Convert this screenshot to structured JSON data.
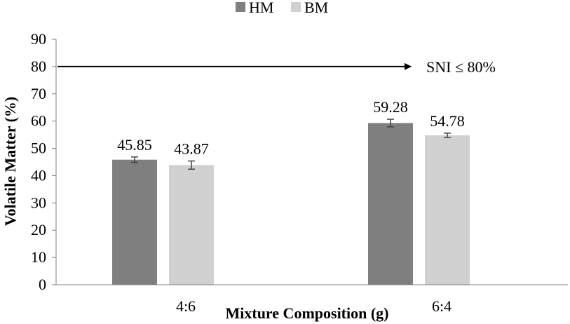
{
  "chart_data": {
    "type": "bar",
    "categories": [
      "4:6",
      "6:4"
    ],
    "series": [
      {
        "name": "HM",
        "color": "#7f7f7f",
        "values": [
          45.85,
          59.28
        ],
        "errors": [
          1.0,
          1.4
        ],
        "labels": [
          "45.85",
          "59.28"
        ]
      },
      {
        "name": "BM",
        "color": "#d0d0d0",
        "values": [
          43.87,
          54.78
        ],
        "errors": [
          1.5,
          0.8
        ],
        "labels": [
          "43.87",
          "54.78"
        ]
      }
    ],
    "xlabel": "Mixture Composition (g)",
    "ylabel": "Volatile Matter (%)",
    "ylim": [
      0,
      90
    ],
    "yticks": [
      0,
      10,
      20,
      30,
      40,
      50,
      60,
      70,
      80,
      90
    ],
    "grid": false,
    "legend_position": "top-center",
    "reference_line": {
      "value": 80,
      "label": "SNI ≤ 80%"
    }
  }
}
